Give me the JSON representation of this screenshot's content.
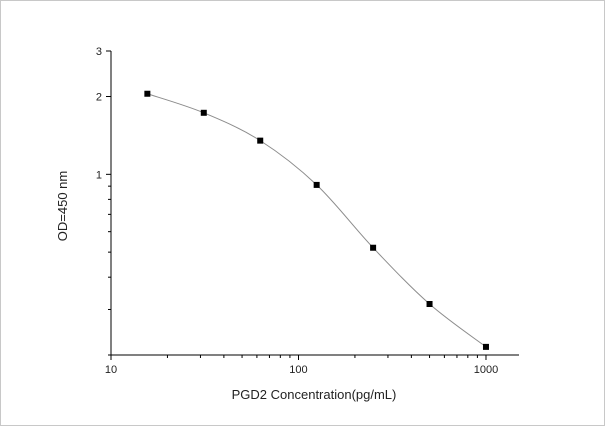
{
  "chart_data": {
    "type": "line",
    "xlabel": "PGD2  Concentration(pg/mL)",
    "ylabel": "OD=450 nm",
    "x_scale": "log",
    "y_scale": "log",
    "xlim": [
      10,
      1500
    ],
    "ylim": [
      0.2,
      3
    ],
    "x_ticks": [
      {
        "value": 10,
        "label": "10"
      },
      {
        "value": 100,
        "label": "100"
      },
      {
        "value": 1000,
        "label": "1000"
      }
    ],
    "y_ticks": [
      {
        "value": 1,
        "label": "1"
      },
      {
        "value": 2,
        "label": "2"
      },
      {
        "value": 3,
        "label": "3"
      }
    ],
    "series": [
      {
        "x": [
          15.63,
          31.25,
          62.5,
          125,
          250,
          500,
          1000
        ],
        "y": [
          2.05,
          1.73,
          1.35,
          0.91,
          0.52,
          0.315,
          0.215
        ]
      }
    ],
    "grid": false,
    "legend": "none",
    "colors": {
      "line": "#8c8c8c",
      "marker": "#000000",
      "axis": "#000000"
    }
  }
}
